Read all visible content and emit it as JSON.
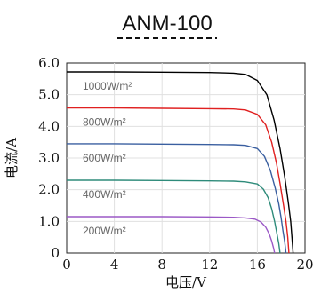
{
  "chart_data": {
    "type": "line",
    "title": "ANM-100",
    "xlabel": "电压/V",
    "ylabel": "电流/A",
    "xlim": [
      0,
      20
    ],
    "ylim": [
      0,
      6.0
    ],
    "x_ticks": [
      "0",
      "4",
      "8",
      "12",
      "16",
      "20"
    ],
    "y_ticks": [
      "0",
      "1.0",
      "2.0",
      "3.0",
      "4.0",
      "5.0",
      "6.0"
    ],
    "grid": true,
    "series": [
      {
        "name": "1000W/m²",
        "color": "#000000",
        "x": [
          0,
          4,
          8,
          12,
          14,
          15,
          16,
          16.8,
          17.4,
          17.9,
          18.3,
          18.6,
          18.8,
          18.9,
          19.0
        ],
        "y": [
          5.72,
          5.72,
          5.71,
          5.7,
          5.68,
          5.64,
          5.45,
          5.0,
          4.2,
          3.3,
          2.4,
          1.6,
          1.0,
          0.5,
          0.0
        ]
      },
      {
        "name": "800W/m²",
        "color": "#e02020",
        "x": [
          0,
          4,
          8,
          12,
          14,
          15,
          16,
          16.7,
          17.2,
          17.6,
          17.9,
          18.2,
          18.4,
          18.55,
          18.65
        ],
        "y": [
          4.58,
          4.58,
          4.57,
          4.56,
          4.55,
          4.52,
          4.38,
          4.05,
          3.5,
          2.85,
          2.2,
          1.5,
          1.0,
          0.5,
          0.0
        ]
      },
      {
        "name": "600W/m²",
        "color": "#3a5fa0",
        "x": [
          0,
          4,
          8,
          12,
          14,
          15,
          16,
          16.6,
          17.1,
          17.5,
          17.8,
          18.0,
          18.15,
          18.3,
          18.4
        ],
        "y": [
          3.45,
          3.45,
          3.44,
          3.43,
          3.42,
          3.4,
          3.3,
          3.05,
          2.6,
          2.05,
          1.55,
          1.1,
          0.7,
          0.35,
          0.0
        ]
      },
      {
        "name": "400W/m²",
        "color": "#2e8b7a",
        "x": [
          0,
          4,
          8,
          12,
          14,
          15,
          16,
          16.5,
          16.9,
          17.2,
          17.45,
          17.65,
          17.8,
          17.9
        ],
        "y": [
          2.3,
          2.3,
          2.29,
          2.28,
          2.27,
          2.25,
          2.18,
          2.02,
          1.75,
          1.4,
          1.0,
          0.6,
          0.3,
          0.0
        ]
      },
      {
        "name": "200W/m²",
        "color": "#9b59c6",
        "x": [
          0,
          4,
          8,
          12,
          14,
          15,
          15.8,
          16.3,
          16.7,
          17.0,
          17.2,
          17.35,
          17.45
        ],
        "y": [
          1.15,
          1.15,
          1.15,
          1.14,
          1.13,
          1.11,
          1.07,
          0.98,
          0.82,
          0.6,
          0.38,
          0.17,
          0.0
        ]
      }
    ],
    "curve_labels": [
      "1000W/m²",
      "800W/m²",
      "600W/m²",
      "400W/m²",
      "200W/m²"
    ]
  }
}
